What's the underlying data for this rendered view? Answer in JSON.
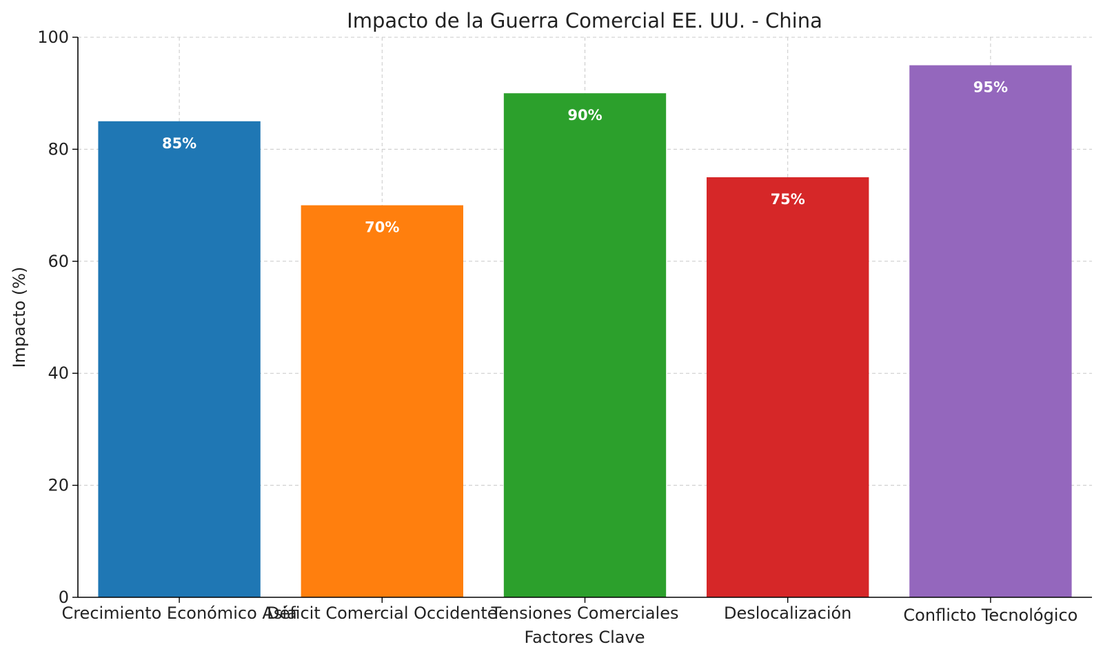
{
  "chart_data": {
    "type": "bar",
    "title": "Impacto de la Guerra Comercial EE. UU. - China",
    "xlabel": "Factores Clave",
    "ylabel": "Impacto (%)",
    "categories": [
      "Crecimiento Económico Asia",
      "Déficit Comercial Occidente",
      "Tensiones Comerciales",
      "Deslocalización",
      "Conflicto Tecnológico"
    ],
    "values": [
      85,
      70,
      90,
      75,
      95
    ],
    "data_labels": [
      "85%",
      "70%",
      "90%",
      "75%",
      "95%"
    ],
    "colors": [
      "#1f77b4",
      "#ff7f0e",
      "#2ca02c",
      "#d62728",
      "#9467bd"
    ],
    "ylim": [
      0,
      100
    ],
    "yticks": [
      0,
      20,
      40,
      60,
      80,
      100
    ],
    "ytick_labels": [
      "0",
      "20",
      "40",
      "60",
      "80",
      "100"
    ],
    "grid": true,
    "legend": "none"
  }
}
